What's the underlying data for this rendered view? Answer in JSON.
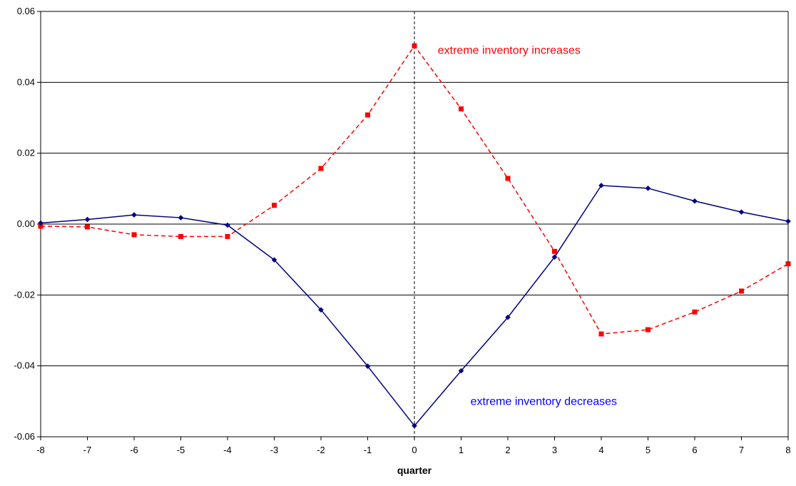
{
  "chart_data": {
    "type": "line",
    "xlabel": "quarter",
    "ylabel": "",
    "xlim": [
      -8,
      8
    ],
    "ylim": [
      -0.06,
      0.06
    ],
    "x_ticks": [
      -8,
      -7,
      -6,
      -5,
      -4,
      -3,
      -2,
      -1,
      0,
      1,
      2,
      3,
      4,
      5,
      6,
      7,
      8
    ],
    "y_ticks": [
      -0.06,
      -0.04,
      -0.02,
      0.0,
      0.02,
      0.04,
      0.06
    ],
    "y_tick_labels": [
      "-0.06",
      "-0.04",
      "-0.02",
      "0.00",
      "0.02",
      "0.04",
      "0.06"
    ],
    "grid": "horizontal",
    "vertical_reference_line_x": 0,
    "x": [
      -8,
      -7,
      -6,
      -5,
      -4,
      -3,
      -2,
      -1,
      0,
      1,
      2,
      3,
      4,
      5,
      6,
      7,
      8
    ],
    "series": [
      {
        "key": "increases",
        "color": "#FF0000",
        "line_style": "dashed",
        "marker": "square",
        "values": [
          -0.0006,
          -0.0008,
          -0.003,
          -0.0035,
          -0.0035,
          0.0053,
          0.0157,
          0.0308,
          0.0503,
          0.0325,
          0.0129,
          -0.0077,
          -0.031,
          -0.0298,
          -0.0248,
          -0.0189,
          -0.0112
        ]
      },
      {
        "key": "decreases",
        "color": "#000080",
        "line_style": "solid",
        "marker": "diamond",
        "values": [
          0.0003,
          0.0013,
          0.0026,
          0.0018,
          -0.0003,
          -0.0101,
          -0.0242,
          -0.0401,
          -0.0569,
          -0.0414,
          -0.0263,
          -0.0093,
          0.0109,
          0.0101,
          0.0065,
          0.0034,
          0.0008
        ]
      }
    ],
    "annotations": [
      {
        "key": "increases",
        "text": "extreme inventory increases",
        "x": 0.5,
        "y": 0.048,
        "color": "#FF0000"
      },
      {
        "key": "decreases",
        "text": "extreme inventory decreases",
        "x": 1.2,
        "y": -0.051,
        "color": "#0000FF"
      }
    ]
  }
}
